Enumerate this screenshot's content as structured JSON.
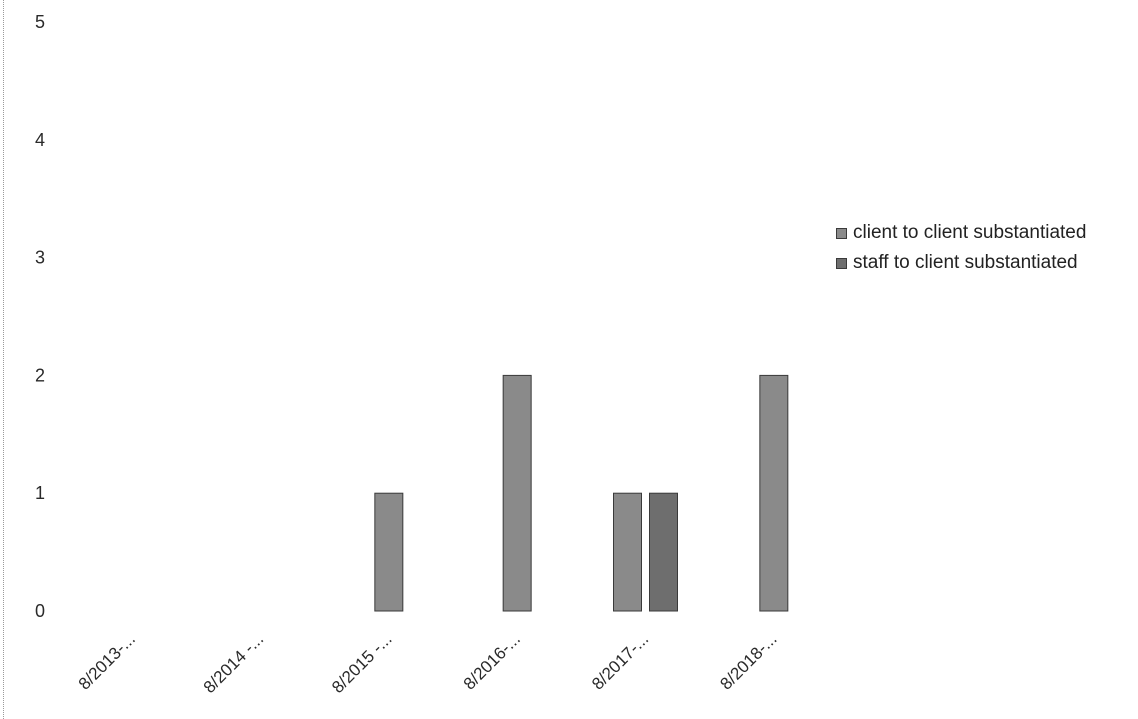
{
  "chart_data": {
    "type": "bar",
    "title": "",
    "xlabel": "",
    "ylabel": "",
    "categories": [
      "8/2013-...",
      "8/2014 -...",
      "8/2015 -...",
      "8/2016-...",
      "8/2017-...",
      "8/2018-..."
    ],
    "series": [
      {
        "name": "client to client substantiated",
        "color": "#8a8a8a",
        "values": [
          0,
          0,
          1,
          2,
          1,
          2
        ]
      },
      {
        "name": "staff to client substantiated",
        "color": "#6e6e6e",
        "values": [
          0,
          0,
          0,
          0,
          1,
          0
        ]
      }
    ],
    "y_ticks": [
      "0",
      "1",
      "2",
      "3",
      "4",
      "5"
    ],
    "ylim": [
      0,
      5
    ],
    "grid": false,
    "legend_position": "right"
  }
}
